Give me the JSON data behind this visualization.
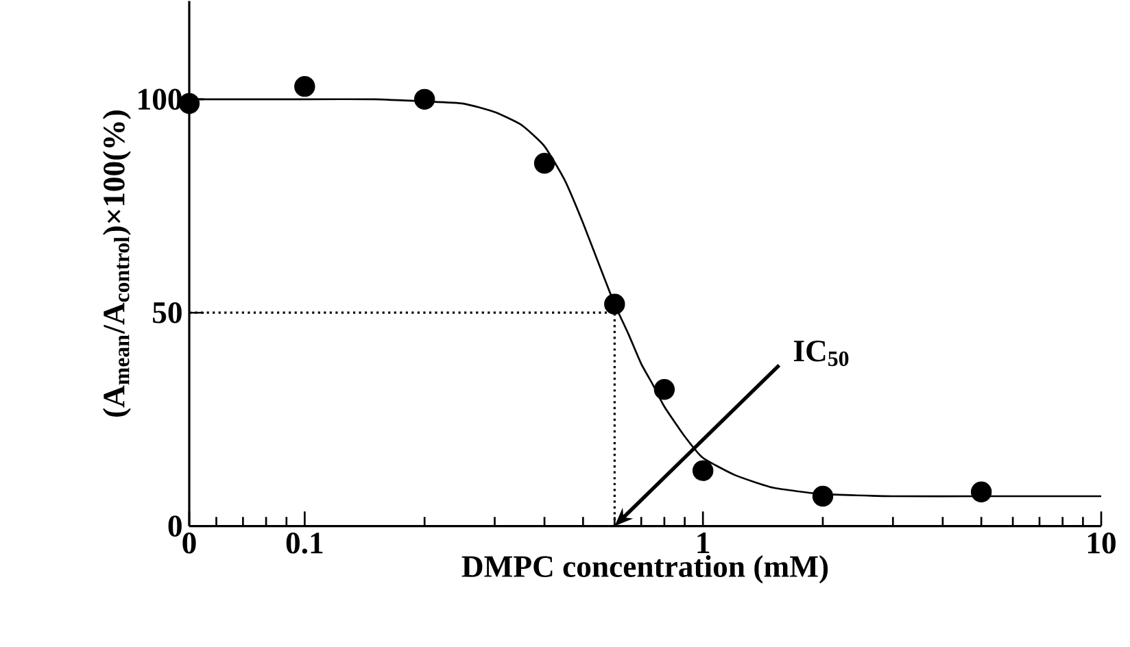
{
  "chart_data": {
    "type": "scatter",
    "xlabel": "DMPC concentration (mM)",
    "ylabel": "(A$_{mean}$/A$_{control}$)×100(%)",
    "log": "x",
    "xlim": [
      0.0513,
      10
    ],
    "xticks": [
      {
        "value": 0.0513,
        "label": "0"
      },
      0.1,
      1,
      10
    ],
    "ylim": [
      0,
      123
    ],
    "yticks": [
      0,
      50,
      100
    ],
    "marker": "circle",
    "grid": false,
    "series": [
      {
        "color": "#000000",
        "x": [
          0.0513,
          0.1,
          0.2,
          0.4,
          0.6,
          0.8,
          1.0,
          2,
          5
        ],
        "values": [
          99,
          103,
          100,
          85,
          52,
          32,
          13,
          7,
          8
        ]
      },
      {
        "type": "line",
        "color": "#000000",
        "marker": "none",
        "line_style": "solid",
        "x": [
          0.0513,
          0.07,
          0.1,
          0.15,
          0.2,
          0.25,
          0.3,
          0.35,
          0.4,
          0.45,
          0.5,
          0.55,
          0.6,
          0.65,
          0.7,
          0.75,
          0.8,
          0.9,
          1.0,
          1.2,
          1.5,
          2,
          3,
          5,
          10
        ],
        "values": [
          100,
          100,
          100,
          100,
          99.5,
          99,
          97,
          94,
          89,
          81,
          71,
          61,
          52,
          45,
          38,
          33,
          28,
          21,
          16,
          12,
          9,
          7.5,
          7,
          7,
          7
        ]
      }
    ],
    "ref_lines": [
      {
        "axis": "y",
        "value": 50,
        "line_style": "dotted"
      },
      {
        "axis": "x",
        "value": 0.6,
        "line_style": "dotted"
      }
    ],
    "annotations": [
      {
        "text": "IC$_{50}$",
        "x": 0.6,
        "y": 0
      }
    ]
  }
}
